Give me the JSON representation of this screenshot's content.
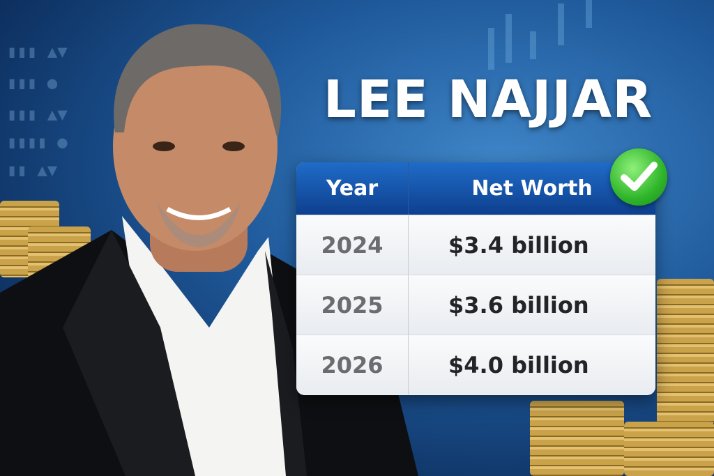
{
  "title": "LEE NAJJAR",
  "table": {
    "headers": [
      "Year",
      "Net Worth"
    ],
    "rows": [
      {
        "year": "2024",
        "net_worth": "$3.4 billion"
      },
      {
        "year": "2025",
        "net_worth": "$3.6 billion"
      },
      {
        "year": "2026",
        "net_worth": "$4.0 billion"
      }
    ]
  },
  "badge_icon": "check-icon",
  "colors": {
    "header_blue": "#1552a8",
    "check_green": "#2fb52a",
    "background_blue": "#1f5a9c"
  }
}
